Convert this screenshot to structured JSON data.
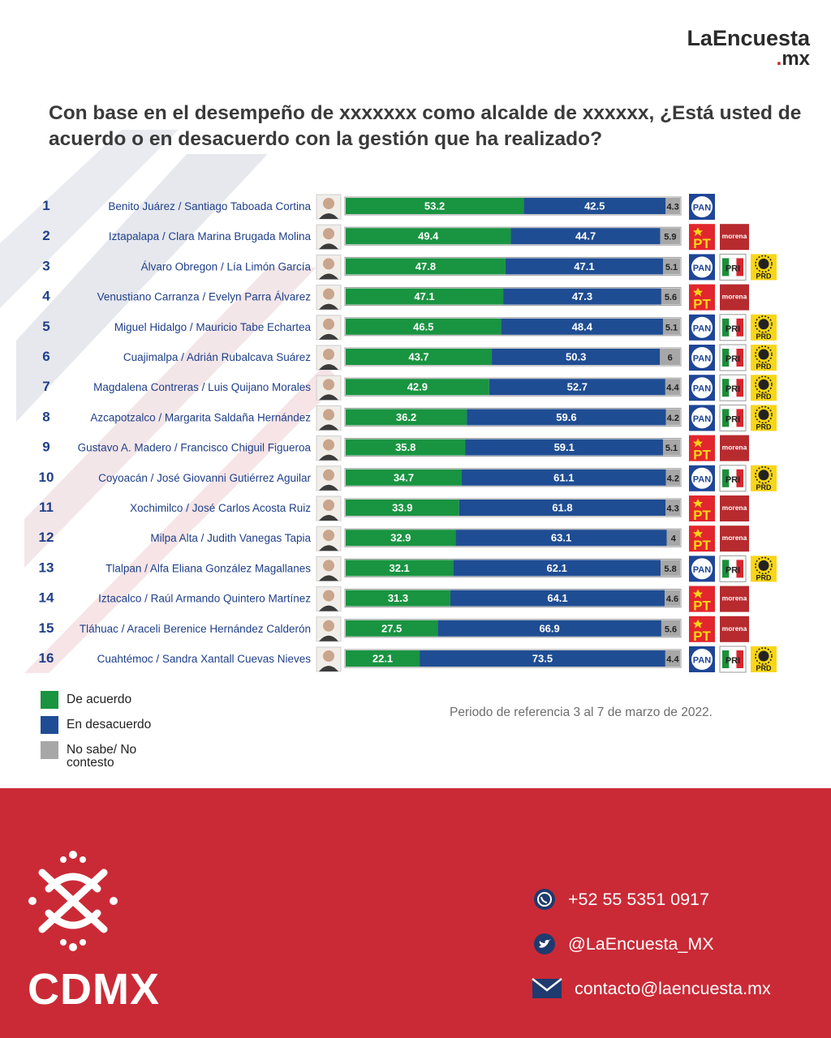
{
  "brand": {
    "name": "LaEncuesta",
    "domain": ".mx"
  },
  "question": "Con base en el desempeño de xxxxxxx como alcalde de xxxxxx, ¿Está usted de acuerdo o en desacuerdo con la gestión que ha realizado?",
  "colors": {
    "agree": "#199441",
    "disagree": "#1f4d93",
    "unknown": "#a7a7a7",
    "footer": "#ca2a36",
    "pan": "#1f4597",
    "pt": "#e2262d",
    "morena": "#b72a2e",
    "pri": "#1b8f3a",
    "prd": "#f8d617"
  },
  "chart_data": {
    "type": "bar",
    "stacked": true,
    "orientation": "horizontal",
    "categories": [
      "Benito Juárez / Santiago Taboada Cortina",
      "Iztapalapa / Clara Marina Brugada Molina",
      "Álvaro Obregon / Lía Limón García",
      "Venustiano Carranza / Evelyn Parra Álvarez",
      "Miguel Hidalgo / Mauricio Tabe Echartea",
      "Cuajimalpa / Adrián Rubalcava Suárez",
      "Magdalena Contreras / Luis Quijano Morales",
      "Azcapotzalco / Margarita Saldaña Hernández",
      "Gustavo A. Madero / Francisco Chiguil Figueroa",
      "Coyoacán / José Giovanni Gutiérrez Aguilar",
      "Xochimilco / José Carlos Acosta Ruiz",
      "Milpa Alta / Judith Vanegas Tapia",
      "Tlalpan / Alfa Eliana González Magallanes",
      "Iztacalco / Raúl Armando Quintero Martínez",
      "Tláhuac / Araceli Berenice Hernández Calderón",
      "Cuahtémoc / Sandra Xantall Cuevas Nieves"
    ],
    "ranks": [
      "1",
      "2",
      "3",
      "4",
      "5",
      "6",
      "7",
      "8",
      "9",
      "10",
      "11",
      "12",
      "13",
      "14",
      "15",
      "16"
    ],
    "series": [
      {
        "name": "De acuerdo",
        "values": [
          53.2,
          49.4,
          47.8,
          47.1,
          46.5,
          43.7,
          42.9,
          36.2,
          35.8,
          34.7,
          33.9,
          32.9,
          32.1,
          31.3,
          27.5,
          22.1
        ]
      },
      {
        "name": "En desacuerdo",
        "values": [
          42.5,
          44.7,
          47.1,
          47.3,
          48.4,
          50.3,
          52.7,
          59.6,
          59.1,
          61.1,
          61.8,
          63.1,
          62.1,
          64.1,
          66.9,
          73.5
        ]
      },
      {
        "name": "No sabe/ No contesto",
        "values": [
          4.3,
          5.9,
          5.1,
          5.6,
          5.1,
          6,
          4.4,
          4.2,
          5.1,
          4.2,
          4.3,
          4,
          5.8,
          4.6,
          5.6,
          4.4
        ]
      }
    ],
    "xlim": [
      0,
      100
    ],
    "parties": [
      [
        "PAN"
      ],
      [
        "PT",
        "morena"
      ],
      [
        "PAN",
        "PRI",
        "PRD"
      ],
      [
        "PT",
        "morena"
      ],
      [
        "PAN",
        "PRI",
        "PRD"
      ],
      [
        "PAN",
        "PRI",
        "PRD"
      ],
      [
        "PAN",
        "PRI",
        "PRD"
      ],
      [
        "PAN",
        "PRI",
        "PRD"
      ],
      [
        "PT",
        "morena"
      ],
      [
        "PAN",
        "PRI",
        "PRD"
      ],
      [
        "PT",
        "morena"
      ],
      [
        "PT",
        "morena"
      ],
      [
        "PAN",
        "PRI",
        "PRD"
      ],
      [
        "PT",
        "morena"
      ],
      [
        "PT",
        "morena"
      ],
      [
        "PAN",
        "PRI",
        "PRD"
      ]
    ],
    "legend_position": "bottom-left"
  },
  "legend": [
    {
      "label": "De acuerdo",
      "color": "#199441"
    },
    {
      "label": "En desacuerdo",
      "color": "#1f4d93"
    },
    {
      "label": "No sabe/ No contesto",
      "color": "#a7a7a7"
    }
  ],
  "reference": "Periodo de referencia 3 al 7 de marzo de 2022.",
  "footer": {
    "city": "CDMX",
    "phone": "+52 55 5351 0917",
    "twitter": "@LaEncuesta_MX",
    "email": "contacto@laencuesta.mx"
  }
}
